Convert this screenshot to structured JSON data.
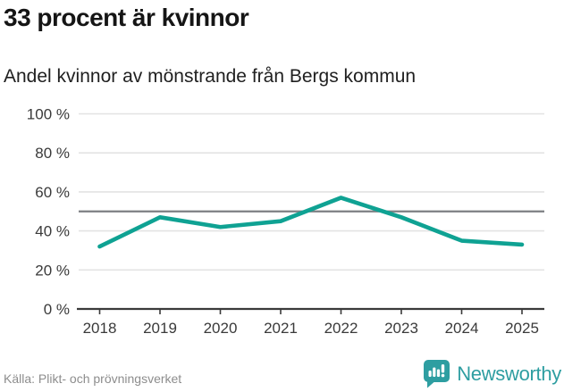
{
  "chart_data": {
    "type": "line",
    "title": "33 procent är kvinnor",
    "subtitle": "Andel kvinnor av mönstrande från Bergs kommun",
    "categories": [
      "2018",
      "2019",
      "2020",
      "2021",
      "2022",
      "2023",
      "2024",
      "2025"
    ],
    "series": [
      {
        "name": "Andel kvinnor av mönstrande",
        "values": [
          32,
          47,
          42,
          45,
          57,
          47,
          35,
          33
        ]
      }
    ],
    "unit": "%",
    "ylim": [
      0,
      100
    ],
    "yticks": [
      0,
      20,
      40,
      60,
      80,
      100
    ],
    "ytick_labels": [
      "0 %",
      "20 %",
      "40 %",
      "60 %",
      "80 %",
      "100 %"
    ],
    "reference_line": 50,
    "grid": true,
    "legend": "none",
    "xlabel": "",
    "ylabel": ""
  },
  "colors": {
    "line": "#0fa293",
    "grid": "#e3e3e3",
    "axis": "#3a3a3a",
    "reference": "#7d7f83",
    "brand": "#2e9ea1",
    "badge": "#2e9ea1"
  },
  "footer": {
    "source": "Källa: Plikt- och prövningsverket",
    "brand": "Newsworthy"
  }
}
